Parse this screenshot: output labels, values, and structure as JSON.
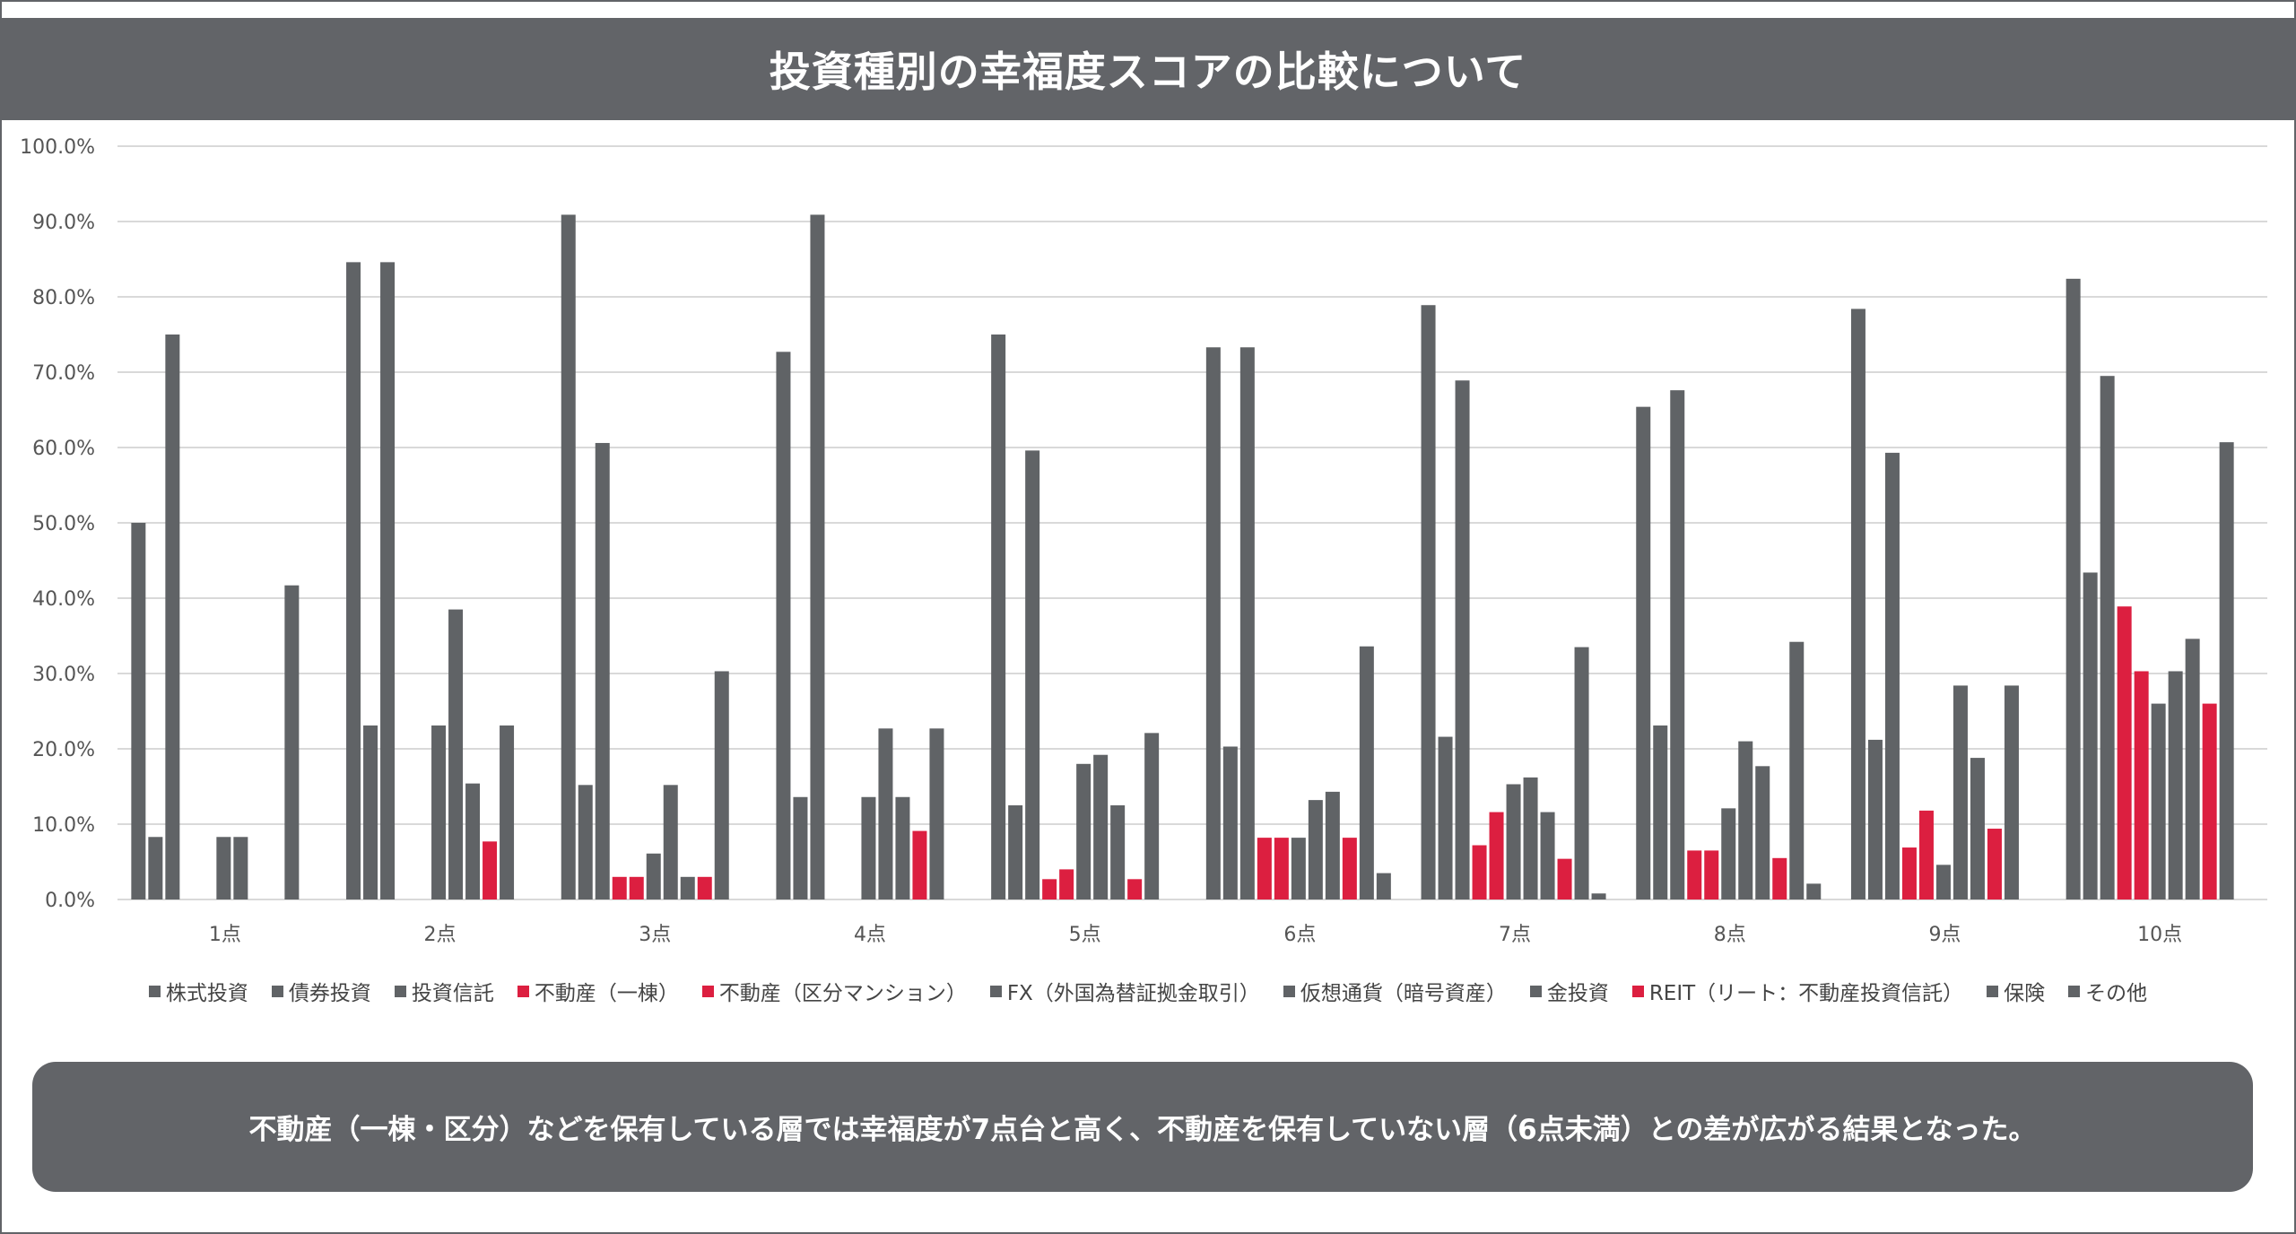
{
  "header": {
    "title": "投資種別の幸福度スコアの比較について"
  },
  "caption": "不動産（一棟・区分）などを保有している層では幸福度が7点台と高く、不動産を保有していない層（6点未満）との差が広がる結果となった。",
  "colors": {
    "gray": "#606366",
    "red": "#dc1f40",
    "title_bg": "#626468",
    "grid": "#d9d9d9"
  },
  "chart_data": {
    "type": "bar",
    "title": "",
    "xlabel": "",
    "ylabel": "",
    "ylim": [
      0,
      100
    ],
    "y_ticks": [
      "0.0%",
      "10.0%",
      "20.0%",
      "30.0%",
      "40.0%",
      "50.0%",
      "60.0%",
      "70.0%",
      "80.0%",
      "90.0%",
      "100.0%"
    ],
    "grid": true,
    "legend_position": "bottom",
    "categories": [
      "1点",
      "2点",
      "3点",
      "4点",
      "5点",
      "6点",
      "7点",
      "8点",
      "9点",
      "10点"
    ],
    "series": [
      {
        "name": "株式投資",
        "color": "gray",
        "values": [
          50.0,
          84.6,
          90.9,
          72.7,
          75.0,
          73.3,
          78.9,
          65.4,
          78.4,
          82.4
        ]
      },
      {
        "name": "債券投資",
        "color": "gray",
        "values": [
          8.3,
          23.1,
          15.2,
          13.6,
          12.5,
          20.3,
          21.6,
          23.1,
          21.2,
          43.4
        ]
      },
      {
        "name": "投資信託",
        "color": "gray",
        "values": [
          75.0,
          84.6,
          60.6,
          90.9,
          59.6,
          73.3,
          68.9,
          67.6,
          59.3,
          69.5
        ]
      },
      {
        "name": "不動産（一棟）",
        "color": "red",
        "values": [
          0,
          0,
          3.0,
          0,
          2.7,
          8.2,
          7.2,
          6.5,
          6.9,
          38.9
        ]
      },
      {
        "name": "不動産（区分マンション）",
        "color": "red",
        "values": [
          0,
          0,
          3.0,
          0,
          4.0,
          8.2,
          11.6,
          6.5,
          11.8,
          30.3
        ]
      },
      {
        "name": "FX（外国為替証拠金取引）",
        "color": "gray",
        "values": [
          8.3,
          23.1,
          6.1,
          13.6,
          18.0,
          8.2,
          15.3,
          12.1,
          4.6,
          26.0
        ]
      },
      {
        "name": "仮想通貨（暗号資産）",
        "color": "gray",
        "values": [
          8.3,
          38.5,
          15.2,
          22.7,
          19.2,
          13.2,
          16.2,
          21.0,
          28.4,
          30.3
        ]
      },
      {
        "name": "金投資",
        "color": "gray",
        "values": [
          0,
          15.4,
          3.0,
          13.6,
          12.5,
          14.3,
          11.6,
          17.7,
          18.8,
          34.6
        ]
      },
      {
        "name": "REIT（リート：不動産投資信託）",
        "color": "red",
        "values": [
          0,
          7.7,
          3.0,
          9.1,
          2.7,
          8.2,
          5.4,
          5.5,
          9.4,
          26.0
        ]
      },
      {
        "name": "保険",
        "color": "gray",
        "values": [
          41.7,
          23.1,
          30.3,
          22.7,
          22.1,
          33.6,
          33.5,
          34.2,
          28.4,
          60.7
        ]
      },
      {
        "name": "その他",
        "color": "gray",
        "values": [
          0,
          0,
          0,
          0,
          0,
          3.5,
          0.8,
          2.1,
          0,
          0
        ]
      }
    ]
  }
}
